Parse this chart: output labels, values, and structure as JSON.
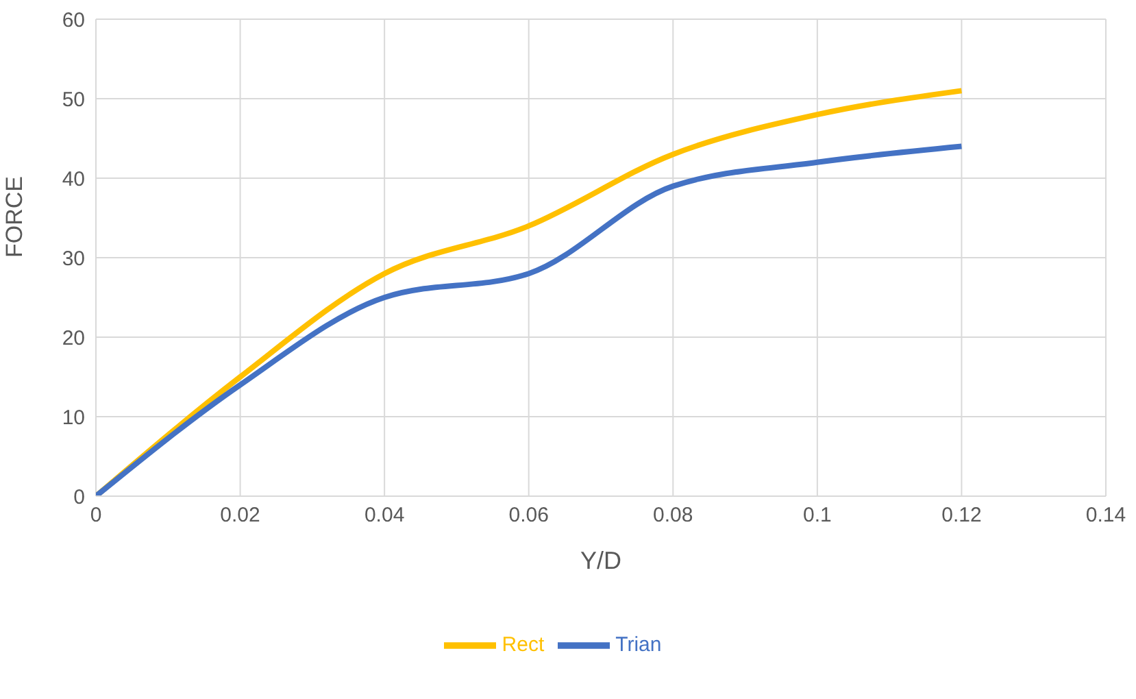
{
  "chart_data": {
    "type": "line",
    "xlabel": "Y/D",
    "ylabel": "FORCE",
    "x": [
      0,
      0.02,
      0.04,
      0.06,
      0.08,
      0.1,
      0.12
    ],
    "series": [
      {
        "name": "Rect",
        "color": "#ffc000",
        "values": [
          0,
          15,
          28,
          34,
          43,
          48,
          51
        ]
      },
      {
        "name": "Trian",
        "color": "#4472c4",
        "values": [
          0,
          14,
          25,
          28,
          39,
          42,
          44
        ]
      }
    ],
    "xlim": [
      0,
      0.14
    ],
    "xticks": [
      0,
      0.02,
      0.04,
      0.06,
      0.08,
      0.1,
      0.12,
      0.14
    ],
    "ylim": [
      0,
      60
    ],
    "yticks": [
      0,
      10,
      20,
      30,
      40,
      50,
      60
    ],
    "grid": true,
    "legend": "bottom",
    "marker": "none",
    "line_style": "solid"
  }
}
